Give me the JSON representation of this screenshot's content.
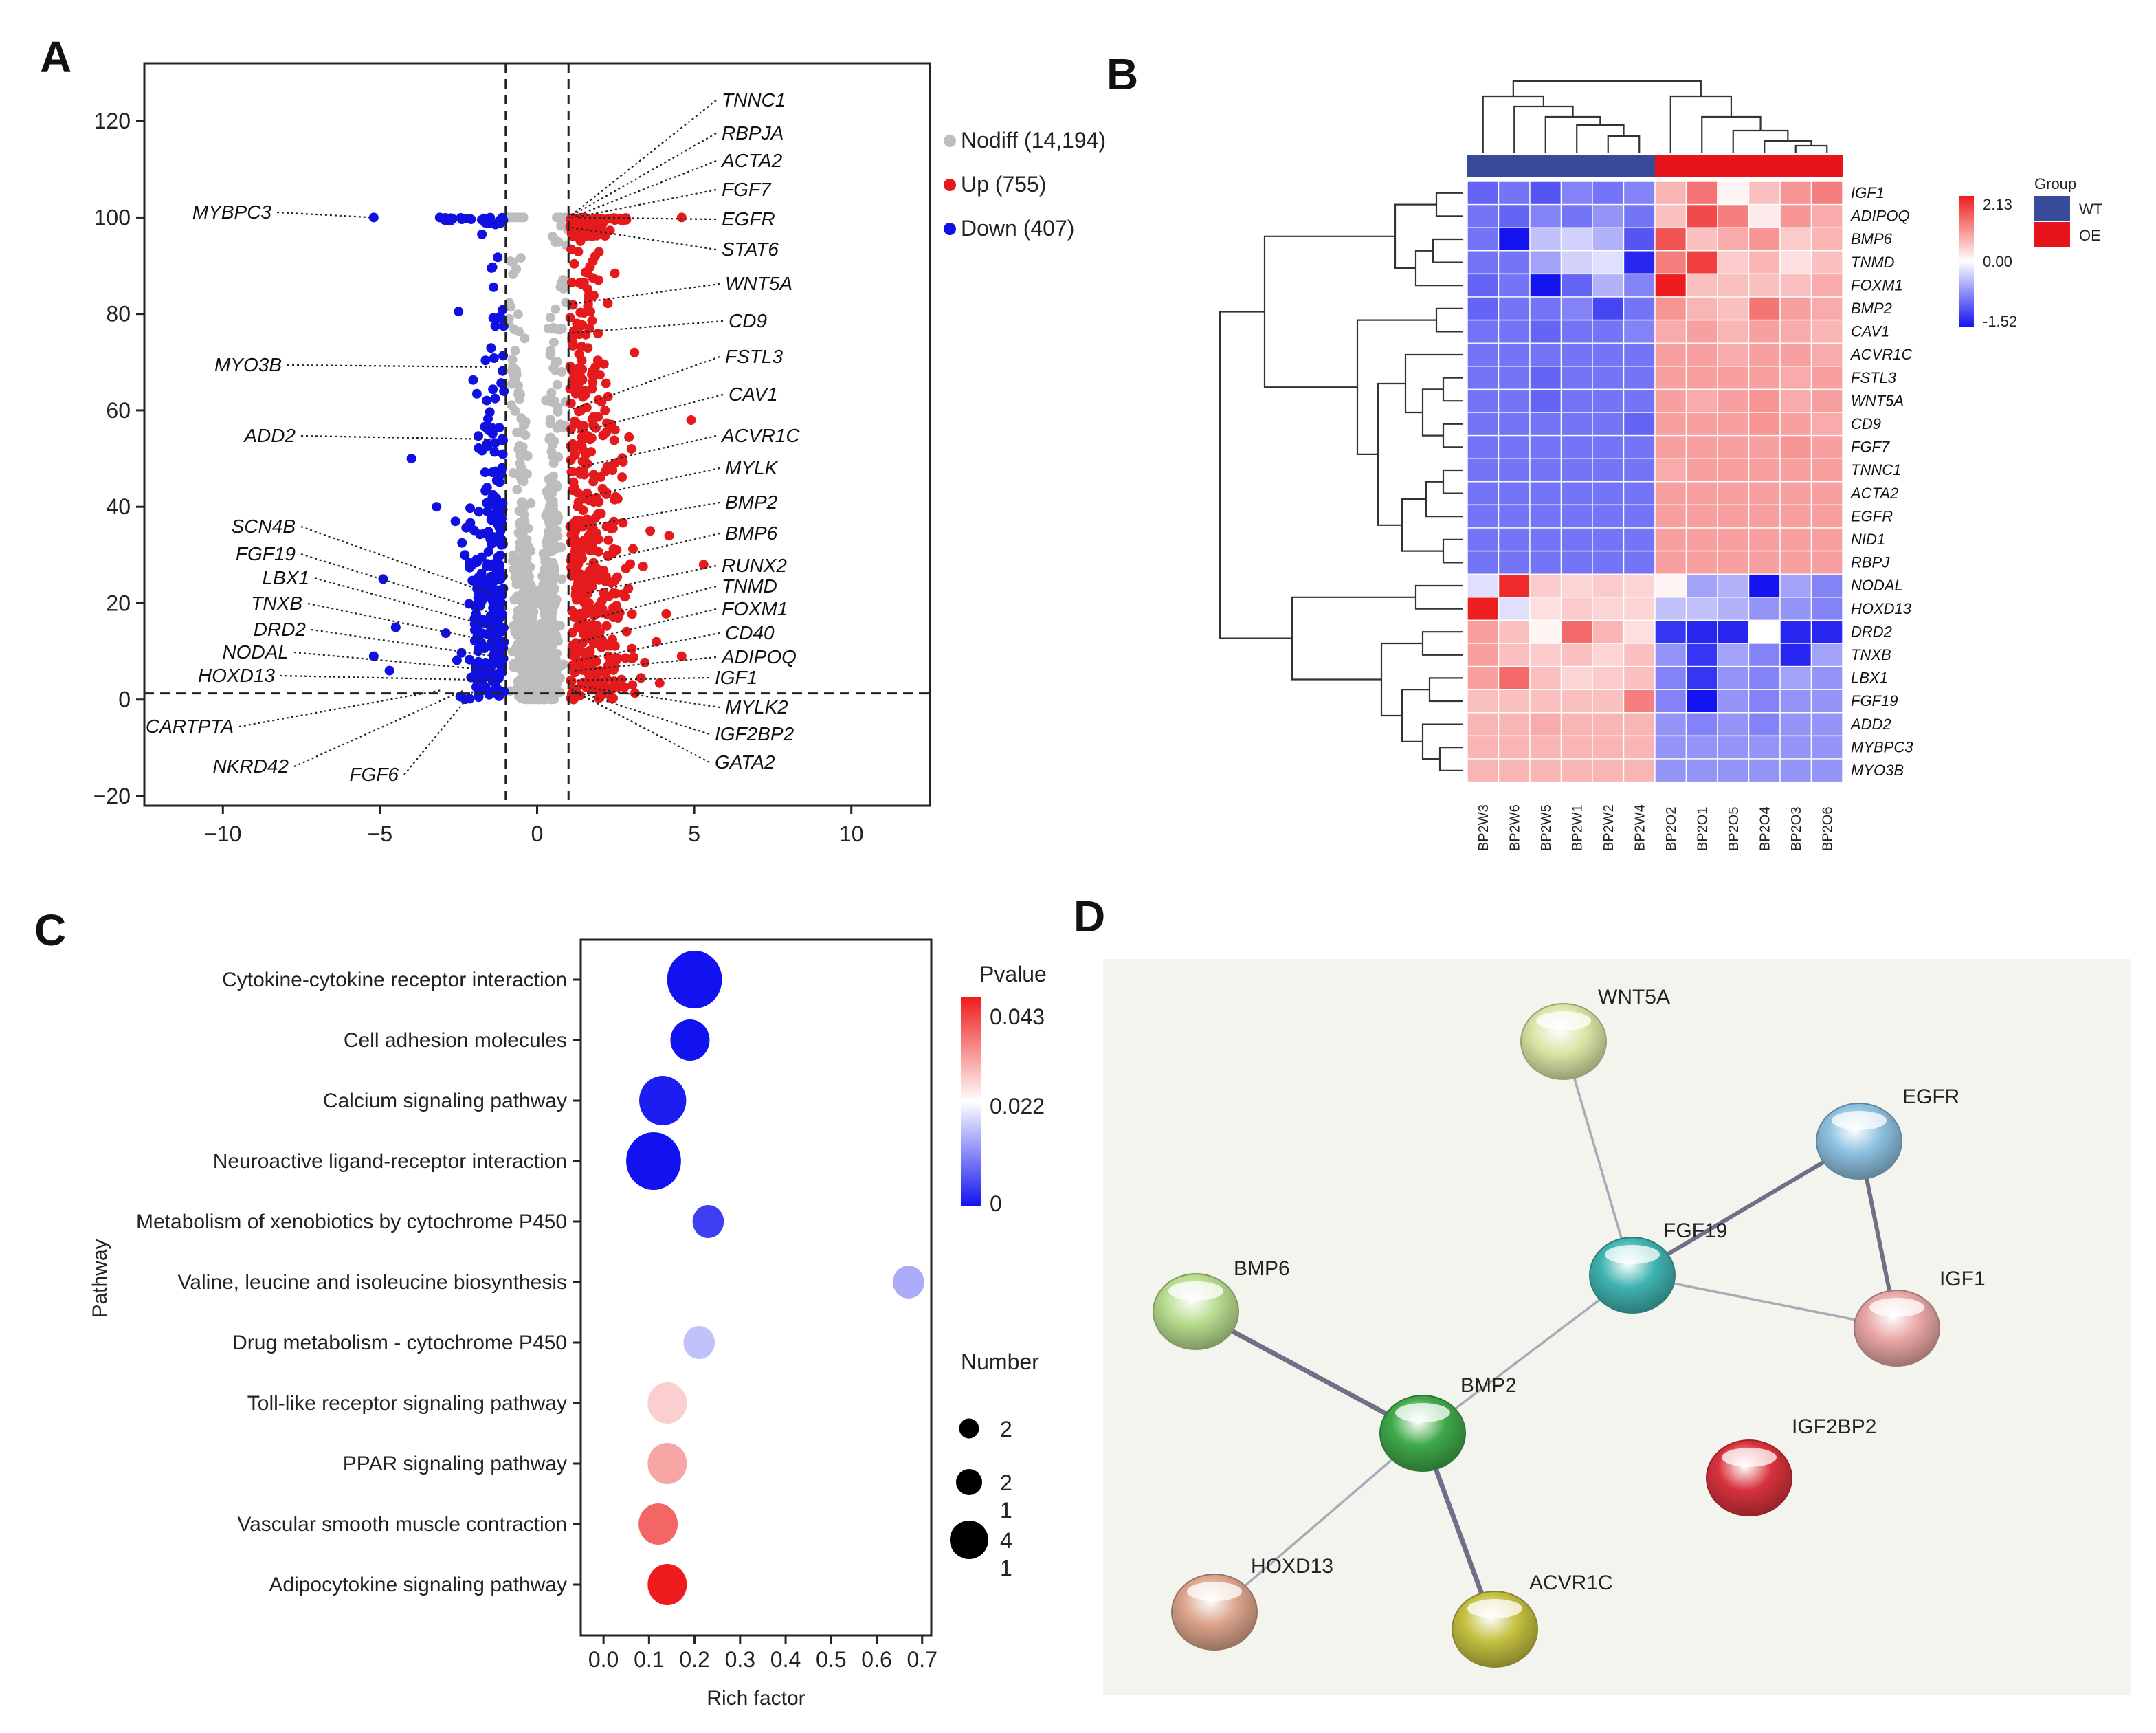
{
  "panels": {
    "a": "A",
    "b": "B",
    "c": "C",
    "d": "D"
  },
  "chart_data": [
    {
      "id": "volcano",
      "type": "scatter",
      "title": "",
      "xlabel": "",
      "ylabel": "",
      "xlim": [
        -12.5,
        12.5
      ],
      "ylim": [
        -22,
        132
      ],
      "xticks": [
        -10,
        -5,
        0,
        5,
        10
      ],
      "yticks": [
        -20,
        0,
        20,
        40,
        60,
        80,
        100,
        120
      ],
      "thresholds": {
        "x": [
          -1,
          1
        ],
        "y": 1.3
      },
      "legend": [
        {
          "label": "Nodiff (14,194)",
          "color": "#bdbdbd"
        },
        {
          "label": "Up (755)",
          "color": "#e41a1c"
        },
        {
          "label": "Down (407)",
          "color": "#1010e0"
        }
      ],
      "colors": {
        "nodiff": "#bdbdbd",
        "up": "#e41a1c",
        "down": "#1010e0"
      },
      "left_labels": [
        {
          "gene": "MYBPC3",
          "x": -5.2,
          "y": 100
        },
        {
          "gene": "MYO3B",
          "x": -1.5,
          "y": 69
        },
        {
          "gene": "ADD2",
          "x": -1.4,
          "y": 54
        },
        {
          "gene": "SCN4B",
          "x": -1.5,
          "y": 22
        },
        {
          "gene": "FGF19",
          "x": -1.5,
          "y": 18
        },
        {
          "gene": "LBX1",
          "x": -1.4,
          "y": 15
        },
        {
          "gene": "TNXB",
          "x": -1.4,
          "y": 12
        },
        {
          "gene": "DRD2",
          "x": -1.4,
          "y": 9
        },
        {
          "gene": "NODAL",
          "x": -1.3,
          "y": 6
        },
        {
          "gene": "HOXD13",
          "x": -1.3,
          "y": 4
        },
        {
          "gene": "CARTPTA",
          "x": -3.0,
          "y": 2
        },
        {
          "gene": "NKRD42",
          "x": -2.3,
          "y": 2
        },
        {
          "gene": "FGF6",
          "x": -2.0,
          "y": 2
        }
      ],
      "right_labels": [
        {
          "gene": "TNNC1",
          "x": 1.0,
          "y": 100
        },
        {
          "gene": "RBPJA",
          "x": 1.0,
          "y": 100
        },
        {
          "gene": "ACTA2",
          "x": 1.1,
          "y": 100
        },
        {
          "gene": "FGF7",
          "x": 1.2,
          "y": 100
        },
        {
          "gene": "EGFR",
          "x": 1.3,
          "y": 100
        },
        {
          "gene": "STAT6",
          "x": 1.0,
          "y": 98
        },
        {
          "gene": "WNT5A",
          "x": 1.0,
          "y": 82
        },
        {
          "gene": "CD9",
          "x": 1.0,
          "y": 76
        },
        {
          "gene": "FSTL3",
          "x": 1.0,
          "y": 60
        },
        {
          "gene": "CAV1",
          "x": 1.0,
          "y": 55
        },
        {
          "gene": "ACVR1C",
          "x": 1.2,
          "y": 48
        },
        {
          "gene": "MYLK",
          "x": 1.5,
          "y": 42
        },
        {
          "gene": "BMP2",
          "x": 1.5,
          "y": 36
        },
        {
          "gene": "BMP6",
          "x": 1.5,
          "y": 28
        },
        {
          "gene": "RUNX2",
          "x": 1.5,
          "y": 22
        },
        {
          "gene": "TNMD",
          "x": 1.3,
          "y": 16
        },
        {
          "gene": "FOXM1",
          "x": 1.3,
          "y": 12
        },
        {
          "gene": "CD40",
          "x": 1.2,
          "y": 8
        },
        {
          "gene": "ADIPOQ",
          "x": 1.2,
          "y": 6
        },
        {
          "gene": "IGF1",
          "x": 1.1,
          "y": 4
        },
        {
          "gene": "MYLK2",
          "x": 1.1,
          "y": 3
        },
        {
          "gene": "IGF2BP2",
          "x": 1.1,
          "y": 2
        },
        {
          "gene": "GATA2",
          "x": 1.1,
          "y": 2
        }
      ],
      "highlight_down": [
        {
          "x": -5.2,
          "y": 100
        },
        {
          "x": -3.1,
          "y": 100
        },
        {
          "x": -2.5,
          "y": 80.5
        },
        {
          "x": -4.0,
          "y": 50
        },
        {
          "x": -3.2,
          "y": 40
        },
        {
          "x": -2.6,
          "y": 37
        },
        {
          "x": -4.9,
          "y": 25
        },
        {
          "x": -4.5,
          "y": 15
        },
        {
          "x": -5.2,
          "y": 9
        },
        {
          "x": -4.7,
          "y": 6
        },
        {
          "x": -2.3,
          "y": 30
        }
      ],
      "highlight_up": [
        {
          "x": 4.6,
          "y": 100
        },
        {
          "x": 3.1,
          "y": 72
        },
        {
          "x": 4.9,
          "y": 58
        },
        {
          "x": 3.0,
          "y": 52
        },
        {
          "x": 5.3,
          "y": 28
        },
        {
          "x": 3.6,
          "y": 35
        },
        {
          "x": 4.2,
          "y": 34
        },
        {
          "x": 4.6,
          "y": 9
        },
        {
          "x": 3.8,
          "y": 12
        }
      ]
    },
    {
      "id": "heatmap",
      "type": "heatmap",
      "columns": [
        "BP2W3",
        "BP2W6",
        "BP2W5",
        "BP2W1",
        "BP2W2",
        "BP2W4",
        "BP2O2",
        "BP2O1",
        "BP2O5",
        "BP2O4",
        "BP2O3",
        "BP2O6"
      ],
      "column_groups": [
        "WT",
        "WT",
        "WT",
        "WT",
        "WT",
        "WT",
        "OE",
        "OE",
        "OE",
        "OE",
        "OE",
        "OE"
      ],
      "rows": [
        "IGF1",
        "ADIPOQ",
        "BMP6",
        "TNMD",
        "FOXM1",
        "BMP2",
        "CAV1",
        "ACVR1C",
        "FSTL3",
        "WNT5A",
        "CD9",
        "FGF7",
        "TNNC1",
        "ACTA2",
        "EGFR",
        "NID1",
        "RBPJ",
        "NODAL",
        "HOXD13",
        "DRD2",
        "TNXB",
        "LBX1",
        "FGF19",
        "ADD2",
        "MYBPC3",
        "MYO3B"
      ],
      "values": [
        [
          -1.0,
          -0.9,
          -1.1,
          -0.8,
          -0.9,
          -0.8,
          0.7,
          1.3,
          0.1,
          0.6,
          1.0,
          1.2
        ],
        [
          -0.9,
          -1.0,
          -0.8,
          -0.9,
          -0.7,
          -0.9,
          0.6,
          1.7,
          1.2,
          0.2,
          1.0,
          0.8
        ],
        [
          -0.9,
          -1.52,
          -0.4,
          -0.3,
          -0.5,
          -1.1,
          1.6,
          0.6,
          0.8,
          1.0,
          0.5,
          0.7
        ],
        [
          -0.9,
          -0.9,
          -0.6,
          -0.3,
          -0.2,
          -1.4,
          1.2,
          1.8,
          0.5,
          0.7,
          0.3,
          0.6
        ],
        [
          -1.0,
          -0.9,
          -1.52,
          -1.0,
          -0.5,
          -0.8,
          2.13,
          0.6,
          0.6,
          0.6,
          0.6,
          0.8
        ],
        [
          -1.0,
          -0.9,
          -0.9,
          -0.8,
          -1.2,
          -0.9,
          1.0,
          0.7,
          0.6,
          1.3,
          0.9,
          0.8
        ],
        [
          -0.9,
          -0.9,
          -1.0,
          -0.9,
          -0.9,
          -0.8,
          0.8,
          0.9,
          0.7,
          0.9,
          0.8,
          0.7
        ],
        [
          -0.9,
          -0.9,
          -0.9,
          -0.9,
          -0.9,
          -0.9,
          0.9,
          0.9,
          0.8,
          0.9,
          0.9,
          0.8
        ],
        [
          -0.9,
          -0.9,
          -1.0,
          -0.9,
          -0.9,
          -0.9,
          0.9,
          0.9,
          0.9,
          0.9,
          0.8,
          0.9
        ],
        [
          -0.9,
          -0.9,
          -1.0,
          -0.9,
          -0.9,
          -0.9,
          0.9,
          0.8,
          0.9,
          1.0,
          0.8,
          0.9
        ],
        [
          -0.9,
          -0.9,
          -0.9,
          -0.9,
          -0.9,
          -1.0,
          0.9,
          0.9,
          0.9,
          1.0,
          0.9,
          0.8
        ],
        [
          -0.9,
          -0.9,
          -0.9,
          -0.9,
          -0.9,
          -0.9,
          0.9,
          0.9,
          0.9,
          0.9,
          1.0,
          0.9
        ],
        [
          -0.9,
          -0.9,
          -0.9,
          -0.9,
          -0.9,
          -0.9,
          0.8,
          0.9,
          0.9,
          0.9,
          0.9,
          0.9
        ],
        [
          -0.9,
          -0.9,
          -0.9,
          -0.9,
          -0.9,
          -0.9,
          0.9,
          0.9,
          0.9,
          0.9,
          0.9,
          0.9
        ],
        [
          -0.9,
          -0.9,
          -0.9,
          -0.9,
          -0.9,
          -0.9,
          0.9,
          0.9,
          0.9,
          0.9,
          0.9,
          0.9
        ],
        [
          -0.9,
          -0.9,
          -0.9,
          -0.9,
          -0.9,
          -0.9,
          0.9,
          0.9,
          0.9,
          0.9,
          0.9,
          0.9
        ],
        [
          -0.9,
          -0.9,
          -0.9,
          -0.9,
          -0.9,
          -0.9,
          0.9,
          0.9,
          0.9,
          0.9,
          0.9,
          0.9
        ],
        [
          -0.2,
          2.0,
          0.5,
          0.4,
          0.5,
          0.4,
          0.1,
          -0.6,
          -0.5,
          -1.52,
          -0.6,
          -0.8
        ],
        [
          2.1,
          -0.2,
          0.3,
          0.5,
          0.4,
          0.4,
          -0.4,
          -0.4,
          -0.5,
          -0.7,
          -0.7,
          -0.8
        ],
        [
          0.9,
          0.6,
          0.1,
          1.4,
          0.7,
          0.3,
          -1.3,
          -1.4,
          -1.4,
          0.0,
          -1.4,
          -1.4
        ],
        [
          0.9,
          0.6,
          0.5,
          0.6,
          0.4,
          0.6,
          -0.7,
          -1.3,
          -0.6,
          -0.8,
          -1.4,
          -0.6
        ],
        [
          0.9,
          1.4,
          0.6,
          0.4,
          0.5,
          0.6,
          -0.8,
          -1.3,
          -0.7,
          -0.8,
          -0.6,
          -0.7
        ],
        [
          0.6,
          0.6,
          0.6,
          0.6,
          0.6,
          1.2,
          -0.8,
          -1.52,
          -0.7,
          -0.8,
          -0.7,
          -0.7
        ],
        [
          0.7,
          0.7,
          0.8,
          0.7,
          0.7,
          0.7,
          -0.7,
          -0.8,
          -0.7,
          -0.8,
          -0.7,
          -0.7
        ],
        [
          0.7,
          0.7,
          0.7,
          0.7,
          0.7,
          0.7,
          -0.7,
          -0.7,
          -0.7,
          -0.7,
          -0.7,
          -0.7
        ],
        [
          0.7,
          0.7,
          0.7,
          0.7,
          0.7,
          0.7,
          -0.7,
          -0.7,
          -0.7,
          -0.7,
          -0.7,
          -0.7
        ]
      ],
      "scale": {
        "min": -1.52,
        "mid": 0.0,
        "max": 2.13,
        "labels": [
          "2.13",
          "0.00",
          "-1.52"
        ]
      },
      "group_legend": {
        "title": "Group",
        "items": [
          {
            "label": "WT",
            "color": "#3a4a9a"
          },
          {
            "label": "OE",
            "color": "#e8141b"
          }
        ]
      },
      "colors": {
        "low": "#1414f0",
        "mid": "#ffffff",
        "high": "#ee1c1c",
        "grid": "#ffffff"
      }
    },
    {
      "id": "enrichment",
      "type": "scatter",
      "ylabel": "Pathway",
      "xlabel": "Rich factor",
      "xlim": [
        -0.05,
        0.72
      ],
      "xticks": [
        "0.0",
        "0.1",
        "0.2",
        "0.3",
        "0.4",
        "0.5",
        "0.6",
        "0.7"
      ],
      "pathways": [
        {
          "name": "Cytokine-cytokine receptor interaction",
          "rich": 0.2,
          "p": 0.0,
          "n": 4
        },
        {
          "name": "Cell adhesion molecules",
          "rich": 0.19,
          "p": 0.0,
          "n": 2
        },
        {
          "name": "Calcium signaling pathway",
          "rich": 0.13,
          "p": 0.001,
          "n": 3
        },
        {
          "name": "Neuroactive ligand-receptor interaction",
          "rich": 0.11,
          "p": 0.0,
          "n": 4
        },
        {
          "name": "Metabolism of xenobiotics by cytochrome P450",
          "rich": 0.23,
          "p": 0.004,
          "n": 1
        },
        {
          "name": "Valine, leucine and isoleucine biosynthesis",
          "rich": 0.67,
          "p": 0.014,
          "n": 1
        },
        {
          "name": "Drug metabolism - cytochrome P450",
          "rich": 0.21,
          "p": 0.016,
          "n": 1
        },
        {
          "name": "Toll-like receptor signaling pathway",
          "rich": 0.14,
          "p": 0.026,
          "n": 2
        },
        {
          "name": "PPAR signaling pathway",
          "rich": 0.14,
          "p": 0.03,
          "n": 2
        },
        {
          "name": "Vascular smooth muscle contraction",
          "rich": 0.12,
          "p": 0.036,
          "n": 2
        },
        {
          "name": "Adipocytokine signaling pathway",
          "rich": 0.14,
          "p": 0.043,
          "n": 2
        }
      ],
      "pvalue_legend": {
        "title": "Pvalue",
        "labels": [
          "0.043",
          "0.022",
          "0"
        ],
        "min": 0,
        "max": 0.043
      },
      "number_legend": {
        "title": "Number",
        "items": [
          {
            "label": "2",
            "size": 1
          },
          {
            "label": "2\n1",
            "size": 2
          },
          {
            "label": "4\n1",
            "size": 4
          }
        ]
      },
      "colors": {
        "low": "#1212f0",
        "mid": "#ffffff",
        "high": "#ee1c1c"
      }
    },
    {
      "id": "network",
      "type": "diagram",
      "nodes": [
        {
          "name": "WNT5A",
          "color": "#d9e6a6"
        },
        {
          "name": "EGFR",
          "color": "#8cc0e0"
        },
        {
          "name": "FGF19",
          "color": "#3fb3b0"
        },
        {
          "name": "IGF1",
          "color": "#e8a6a6"
        },
        {
          "name": "BMP6",
          "color": "#b8dc8e"
        },
        {
          "name": "BMP2",
          "color": "#3fa84a"
        },
        {
          "name": "IGF2BP2",
          "color": "#d8323c"
        },
        {
          "name": "HOXD13",
          "color": "#dca48c"
        },
        {
          "name": "ACVR1C",
          "color": "#c4c040"
        }
      ],
      "edges": [
        {
          "from": "WNT5A",
          "to": "FGF19",
          "weight": 1
        },
        {
          "from": "FGF19",
          "to": "EGFR",
          "weight": 2
        },
        {
          "from": "FGF19",
          "to": "IGF1",
          "weight": 1
        },
        {
          "from": "EGFR",
          "to": "IGF1",
          "weight": 2
        },
        {
          "from": "FGF19",
          "to": "BMP2",
          "weight": 1
        },
        {
          "from": "BMP6",
          "to": "BMP2",
          "weight": 3
        },
        {
          "from": "BMP2",
          "to": "HOXD13",
          "weight": 1
        },
        {
          "from": "BMP2",
          "to": "ACVR1C",
          "weight": 3
        }
      ],
      "background": "#f4f4ef"
    }
  ]
}
